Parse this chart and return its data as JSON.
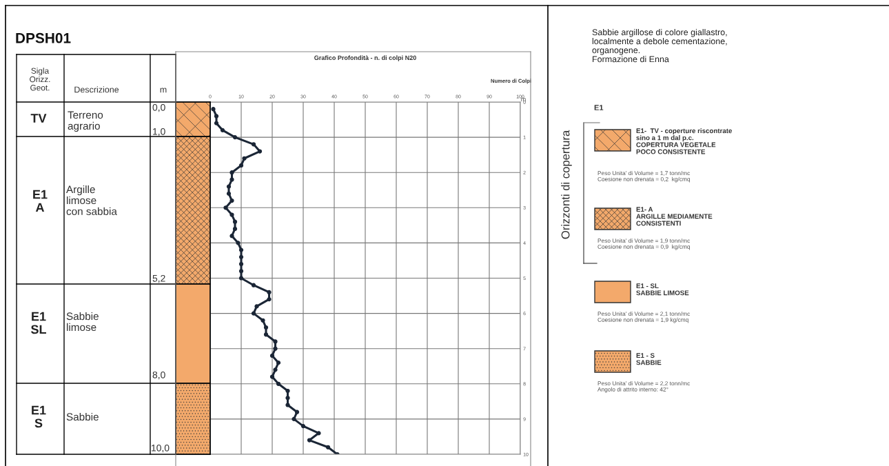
{
  "chart_data": {
    "type": "line",
    "title": "Grafico Profondità - n. di colpi N20",
    "xlabel": "Numero di Colpi",
    "ylabel": "m",
    "orientation": "horizontal",
    "x": [
      0.2,
      0.4,
      0.6,
      0.8,
      1.0,
      1.2,
      1.4,
      1.6,
      1.8,
      2.0,
      2.2,
      2.4,
      2.6,
      2.8,
      3.0,
      3.2,
      3.4,
      3.6,
      3.8,
      4.0,
      4.2,
      4.4,
      4.6,
      4.8,
      5.0,
      5.2,
      5.4,
      5.6,
      5.8,
      6.0,
      6.2,
      6.4,
      6.6,
      6.8,
      7.0,
      7.2,
      7.4,
      7.6,
      7.8,
      8.0,
      8.2,
      8.4,
      8.6,
      8.8,
      9.0,
      9.2,
      9.4,
      9.6,
      9.8,
      10.0
    ],
    "series": [
      {
        "color": "#1b2636",
        "values": [
          1,
          2,
          2,
          4,
          8,
          14,
          16,
          11,
          10,
          7,
          7,
          6,
          6,
          7,
          5,
          7,
          8,
          8,
          7,
          9,
          10,
          10,
          10,
          10,
          10,
          14,
          19,
          19,
          15,
          14,
          17,
          18,
          18,
          21,
          21,
          20,
          22,
          21,
          20,
          22,
          25,
          25,
          25,
          28,
          27,
          30,
          35,
          32,
          38,
          41
        ]
      }
    ],
    "xlim": [
      0,
      100
    ],
    "xticks": [
      0,
      10,
      20,
      30,
      40,
      50,
      60,
      70,
      80,
      90,
      100
    ],
    "ylim": [
      10,
      0
    ],
    "yticks": [
      0,
      1,
      2,
      3,
      4,
      5,
      6,
      7,
      8,
      9,
      10
    ],
    "grid": true,
    "marker": "circle",
    "line_style": "solid",
    "annotations": [
      "DPSH01",
      "Sigla\nOrizz.\nGeot.",
      "Descrizione",
      "m",
      "TV",
      "Terreno\nagrario",
      "0,0",
      "1,0",
      "E1\nA",
      "Argille\nlimose\ncon sabbia",
      "5,2",
      "E1\nSL",
      "Sabbie\nlimose",
      "8,0",
      "E1\nS",
      "Sabbie",
      "10,0",
      "Sabbie argillose di colore giallastro,\nlocalmente a debole cementazione,\norganogene.\nFormazione di Enna",
      "E1",
      "Orizzonti di copertura",
      "E1-  TV - coperture riscontrate\nsino a 1 m dal p.c.\nCOPERTURA VEGETALE\nPOCO CONSISTENTE",
      "Peso Unita' di Volume = 1,7 tonn/mc\nCoesione non drenata = 0,2  kg/cmq",
      "E1- A\nARGILLE MEDIAMENTE\nCONSISTENTI",
      "Peso Unita' di Volume = 1,9 tonn/mc\nCoesione non drenata = 0,9  kg/cmq",
      "E1 - SL\nSABBIE LIMOSE",
      "Peso Unita' di Volume = 2,1 tonn/mc\nCoesione non drenata = 1,9 kg/cmq",
      "E1 - S\nSABBIE",
      "Peso Unita' di Volume = 2,2 tonn/mc\nAngolo di attrito interno: 42°"
    ]
  }
}
